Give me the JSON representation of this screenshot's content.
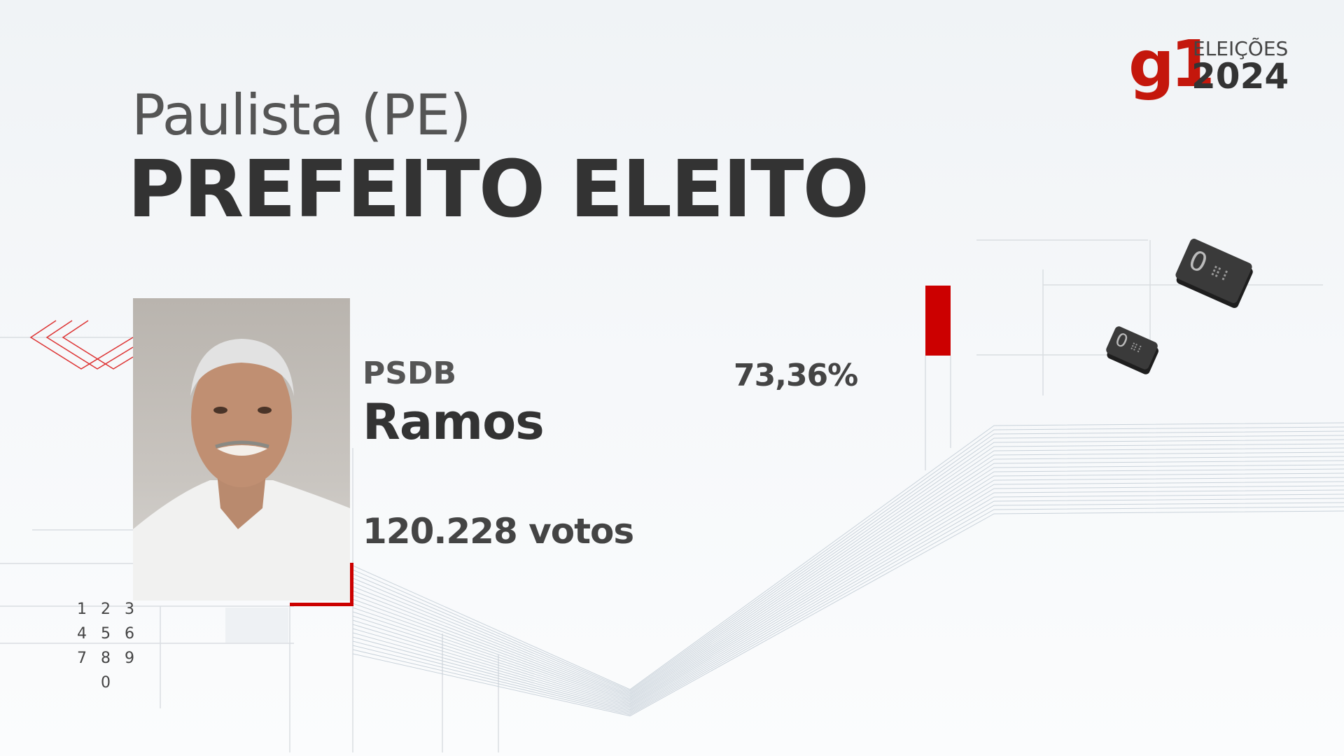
{
  "header": {
    "city": "Paulista (PE)",
    "headline": "PREFEITO ELEITO"
  },
  "logo": {
    "brand": "g1",
    "label": "ELEIÇÕES",
    "year": "2024"
  },
  "candidate": {
    "party": "PSDB",
    "name": "Ramos",
    "percentage": "73,36%",
    "votes": "120.228 votos",
    "percentage_value": 73.36
  },
  "keypad": [
    "1",
    "2",
    "3",
    "4",
    "5",
    "6",
    "7",
    "8",
    "9",
    "0"
  ],
  "colors": {
    "accent": "#cc0000",
    "brand": "#c4170c",
    "text": "#333333"
  }
}
